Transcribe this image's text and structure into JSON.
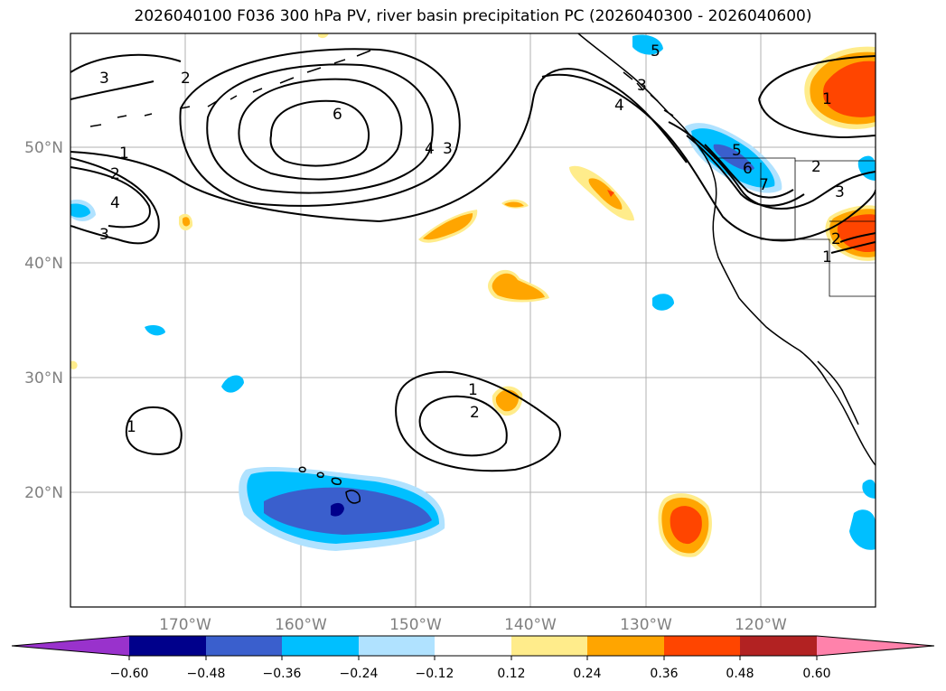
{
  "title": "2026040100 F036 300 hPa PV, river basin precipitation PC (2026040300 - 2026040600)",
  "map": {
    "lat_labels": [
      "50°N",
      "40°N",
      "30°N",
      "20°N"
    ],
    "lon_labels": [
      "170°W",
      "160°W",
      "150°W",
      "140°W",
      "130°W",
      "120°W"
    ],
    "contour_labels": [
      "3",
      "2",
      "6",
      "1",
      "2",
      "4",
      "3",
      "4",
      "3",
      "4",
      "3",
      "5",
      "6",
      "7",
      "2",
      "3",
      "1",
      "2",
      "1",
      "1",
      "2",
      "1",
      "5"
    ],
    "colors": {
      "land_outline": "#000000",
      "grid": "#b0b0b0",
      "contour": "#000000"
    }
  },
  "colorbar": {
    "labels": [
      "−0.60",
      "−0.48",
      "−0.36",
      "−0.24",
      "−0.12",
      "0.12",
      "0.24",
      "0.36",
      "0.48",
      "0.60"
    ],
    "colors": [
      "#9932cc",
      "#00008b",
      "#3a5fcd",
      "#00bfff",
      "#b0e2ff",
      "#ffffff",
      "#ffec8b",
      "#ffa500",
      "#ff4500",
      "#b22222",
      "#ff82ab"
    ]
  }
}
